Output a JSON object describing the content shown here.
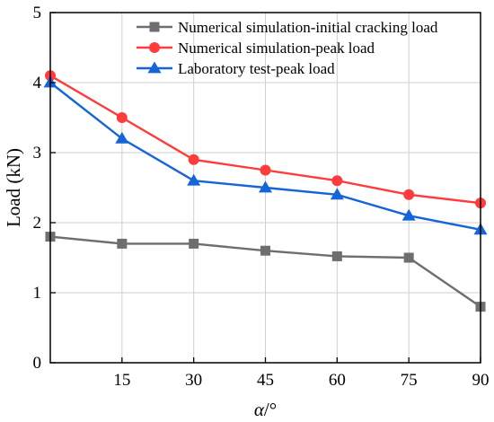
{
  "chart_data": {
    "type": "line",
    "title": "",
    "xlabel_italic": "α",
    "xlabel_rest": "/°",
    "ylabel": "Load (kN)",
    "xlim": [
      0,
      90
    ],
    "ylim": [
      0,
      5
    ],
    "x_ticks": [
      15,
      30,
      45,
      60,
      75,
      90
    ],
    "y_ticks": [
      0,
      1,
      2,
      3,
      4,
      5
    ],
    "grid": true,
    "legend_position": "top-right",
    "x": [
      0,
      15,
      30,
      45,
      60,
      75,
      90
    ],
    "series": [
      {
        "name": "Numerical simulation-initial cracking load",
        "color": "#6e6e6e",
        "marker": "square",
        "values": [
          1.8,
          1.7,
          1.7,
          1.6,
          1.52,
          1.5,
          0.8
        ]
      },
      {
        "name": "Numerical simulation-peak load",
        "color": "#ff3b3b",
        "marker": "circle",
        "values": [
          4.1,
          3.5,
          2.9,
          2.75,
          2.6,
          2.4,
          2.28
        ]
      },
      {
        "name": "Laboratory test-peak load",
        "color": "#1565d8",
        "marker": "triangle",
        "values": [
          4.0,
          3.2,
          2.6,
          2.5,
          2.4,
          2.1,
          1.9
        ]
      }
    ]
  }
}
